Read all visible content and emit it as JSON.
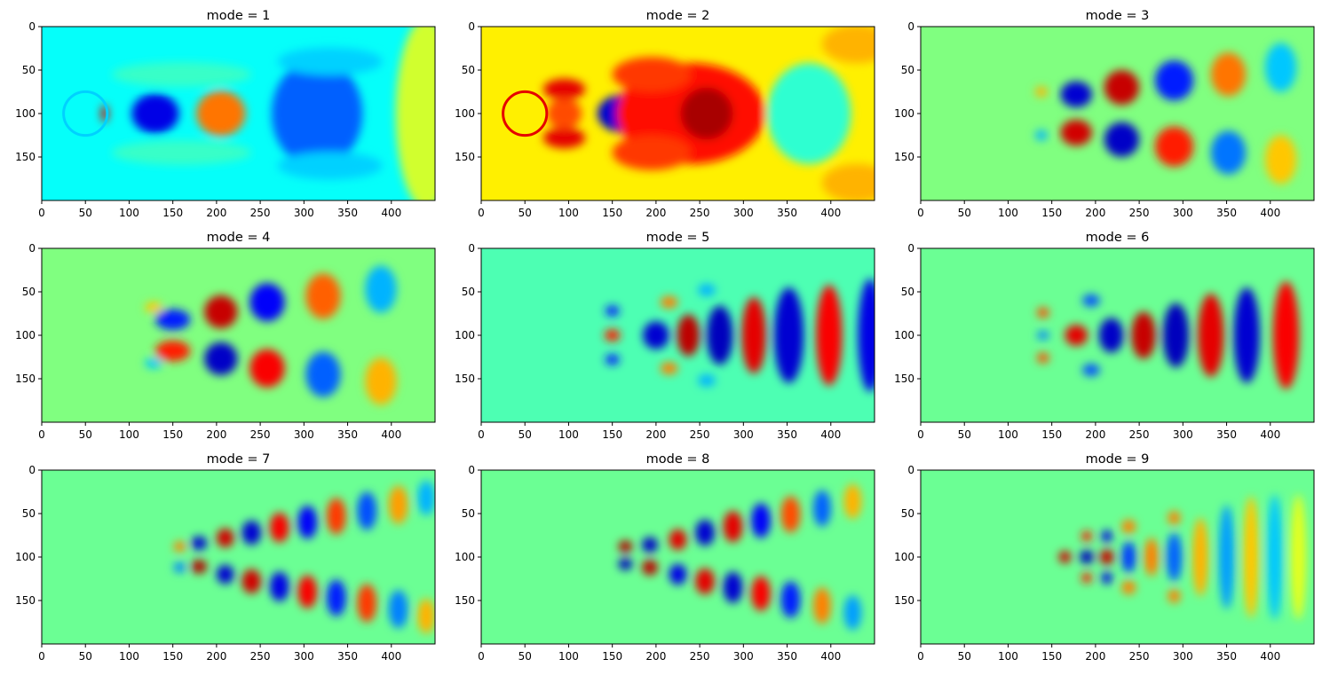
{
  "chart_data": {
    "type": "heatmap",
    "colormap": "jet",
    "xlim": [
      0,
      450
    ],
    "ylim": [
      200,
      0
    ],
    "xticks": [
      "0",
      "50",
      "100",
      "150",
      "200",
      "250",
      "300",
      "350",
      "400"
    ],
    "yticks": [
      "0",
      "50",
      "100",
      "150"
    ],
    "grid": false,
    "cylinder": {
      "center_x": 50,
      "center_y": 100,
      "radius": 25
    },
    "panels": [
      {
        "title": "mode = 1",
        "background": 0.38,
        "shell_value": 0.33,
        "features": [
          {
            "x": 72,
            "y": 100,
            "rx": 4,
            "ry": 10,
            "v": 0.92
          },
          {
            "x": 130,
            "y": 100,
            "rx": 27,
            "ry": 23,
            "v": 0.1
          },
          {
            "x": 205,
            "y": 100,
            "rx": 28,
            "ry": 26,
            "v": 0.76
          },
          {
            "x": 160,
            "y": 55,
            "rx": 80,
            "ry": 14,
            "v": 0.43
          },
          {
            "x": 160,
            "y": 145,
            "rx": 80,
            "ry": 14,
            "v": 0.43
          },
          {
            "x": 315,
            "y": 100,
            "rx": 52,
            "ry": 62,
            "v": 0.22
          },
          {
            "x": 330,
            "y": 40,
            "rx": 60,
            "ry": 16,
            "v": 0.33
          },
          {
            "x": 330,
            "y": 160,
            "rx": 60,
            "ry": 16,
            "v": 0.33
          },
          {
            "x": 440,
            "y": 100,
            "rx": 35,
            "ry": 110,
            "v": 0.58
          }
        ]
      },
      {
        "title": "mode = 2",
        "background": 0.64,
        "shell_value": 0.9,
        "features": [
          {
            "x": 95,
            "y": 72,
            "rx": 24,
            "ry": 12,
            "v": 0.9
          },
          {
            "x": 95,
            "y": 128,
            "rx": 24,
            "ry": 12,
            "v": 0.9
          },
          {
            "x": 95,
            "y": 100,
            "rx": 20,
            "ry": 18,
            "v": 0.8
          },
          {
            "x": 163,
            "y": 100,
            "rx": 30,
            "ry": 22,
            "v": 0.08
          },
          {
            "x": 240,
            "y": 100,
            "rx": 85,
            "ry": 58,
            "v": 0.86
          },
          {
            "x": 258,
            "y": 100,
            "rx": 30,
            "ry": 30,
            "v": 0.96
          },
          {
            "x": 195,
            "y": 55,
            "rx": 45,
            "ry": 20,
            "v": 0.82
          },
          {
            "x": 195,
            "y": 145,
            "rx": 45,
            "ry": 20,
            "v": 0.82
          },
          {
            "x": 375,
            "y": 100,
            "rx": 48,
            "ry": 58,
            "v": 0.42
          },
          {
            "x": 430,
            "y": 20,
            "rx": 40,
            "ry": 22,
            "v": 0.7
          },
          {
            "x": 430,
            "y": 180,
            "rx": 40,
            "ry": 22,
            "v": 0.7
          }
        ]
      },
      {
        "title": "mode = 3",
        "background": 0.5,
        "shell_value": 0.45,
        "features": [
          {
            "x": 138,
            "y": 75,
            "rx": 7,
            "ry": 6,
            "v": 0.7
          },
          {
            "x": 138,
            "y": 125,
            "rx": 7,
            "ry": 6,
            "v": 0.3
          },
          {
            "x": 178,
            "y": 78,
            "rx": 18,
            "ry": 15,
            "v": 0.08
          },
          {
            "x": 178,
            "y": 122,
            "rx": 18,
            "ry": 15,
            "v": 0.92
          },
          {
            "x": 230,
            "y": 70,
            "rx": 20,
            "ry": 20,
            "v": 0.93
          },
          {
            "x": 230,
            "y": 130,
            "rx": 20,
            "ry": 20,
            "v": 0.07
          },
          {
            "x": 290,
            "y": 62,
            "rx": 22,
            "ry": 23,
            "v": 0.15
          },
          {
            "x": 290,
            "y": 138,
            "rx": 22,
            "ry": 23,
            "v": 0.85
          },
          {
            "x": 352,
            "y": 55,
            "rx": 20,
            "ry": 25,
            "v": 0.76
          },
          {
            "x": 352,
            "y": 145,
            "rx": 20,
            "ry": 25,
            "v": 0.24
          },
          {
            "x": 412,
            "y": 47,
            "rx": 18,
            "ry": 28,
            "v": 0.32
          },
          {
            "x": 412,
            "y": 153,
            "rx": 18,
            "ry": 28,
            "v": 0.68
          }
        ]
      },
      {
        "title": "mode = 4",
        "background": 0.5,
        "shell_value": 0.5,
        "features": [
          {
            "x": 128,
            "y": 68,
            "rx": 10,
            "ry": 6,
            "v": 0.68
          },
          {
            "x": 128,
            "y": 132,
            "rx": 10,
            "ry": 6,
            "v": 0.32
          },
          {
            "x": 150,
            "y": 82,
            "rx": 20,
            "ry": 12,
            "v": 0.15
          },
          {
            "x": 150,
            "y": 118,
            "rx": 20,
            "ry": 12,
            "v": 0.85
          },
          {
            "x": 205,
            "y": 73,
            "rx": 19,
            "ry": 19,
            "v": 0.93
          },
          {
            "x": 205,
            "y": 127,
            "rx": 19,
            "ry": 19,
            "v": 0.07
          },
          {
            "x": 258,
            "y": 62,
            "rx": 20,
            "ry": 22,
            "v": 0.12
          },
          {
            "x": 258,
            "y": 138,
            "rx": 20,
            "ry": 22,
            "v": 0.88
          },
          {
            "x": 322,
            "y": 55,
            "rx": 20,
            "ry": 26,
            "v": 0.78
          },
          {
            "x": 322,
            "y": 145,
            "rx": 20,
            "ry": 26,
            "v": 0.22
          },
          {
            "x": 388,
            "y": 47,
            "rx": 18,
            "ry": 27,
            "v": 0.3
          },
          {
            "x": 388,
            "y": 153,
            "rx": 18,
            "ry": 27,
            "v": 0.7
          }
        ]
      },
      {
        "title": "mode = 5",
        "background": 0.45,
        "shell_value": 0.45,
        "features": [
          {
            "x": 150,
            "y": 72,
            "rx": 8,
            "ry": 6,
            "v": 0.15
          },
          {
            "x": 150,
            "y": 100,
            "rx": 9,
            "ry": 7,
            "v": 0.85
          },
          {
            "x": 150,
            "y": 128,
            "rx": 8,
            "ry": 6,
            "v": 0.15
          },
          {
            "x": 200,
            "y": 100,
            "rx": 15,
            "ry": 16,
            "v": 0.08
          },
          {
            "x": 237,
            "y": 100,
            "rx": 13,
            "ry": 24,
            "v": 0.94
          },
          {
            "x": 273,
            "y": 100,
            "rx": 15,
            "ry": 34,
            "v": 0.06
          },
          {
            "x": 312,
            "y": 100,
            "rx": 14,
            "ry": 44,
            "v": 0.9
          },
          {
            "x": 352,
            "y": 100,
            "rx": 17,
            "ry": 55,
            "v": 0.08
          },
          {
            "x": 398,
            "y": 100,
            "rx": 15,
            "ry": 58,
            "v": 0.88
          },
          {
            "x": 445,
            "y": 100,
            "rx": 14,
            "ry": 65,
            "v": 0.1
          },
          {
            "x": 215,
            "y": 62,
            "rx": 10,
            "ry": 7,
            "v": 0.75
          },
          {
            "x": 215,
            "y": 138,
            "rx": 10,
            "ry": 7,
            "v": 0.75
          },
          {
            "x": 258,
            "y": 48,
            "rx": 10,
            "ry": 7,
            "v": 0.3
          },
          {
            "x": 258,
            "y": 152,
            "rx": 10,
            "ry": 7,
            "v": 0.3
          }
        ]
      },
      {
        "title": "mode = 6",
        "background": 0.48,
        "shell_value": 0.48,
        "features": [
          {
            "x": 140,
            "y": 74,
            "rx": 7,
            "ry": 6,
            "v": 0.8
          },
          {
            "x": 140,
            "y": 126,
            "rx": 7,
            "ry": 6,
            "v": 0.8
          },
          {
            "x": 140,
            "y": 100,
            "rx": 7,
            "ry": 5,
            "v": 0.25
          },
          {
            "x": 178,
            "y": 100,
            "rx": 13,
            "ry": 12,
            "v": 0.9
          },
          {
            "x": 218,
            "y": 100,
            "rx": 14,
            "ry": 20,
            "v": 0.07
          },
          {
            "x": 255,
            "y": 100,
            "rx": 14,
            "ry": 27,
            "v": 0.93
          },
          {
            "x": 292,
            "y": 100,
            "rx": 15,
            "ry": 37,
            "v": 0.06
          },
          {
            "x": 332,
            "y": 100,
            "rx": 15,
            "ry": 48,
            "v": 0.9
          },
          {
            "x": 373,
            "y": 100,
            "rx": 15,
            "ry": 55,
            "v": 0.08
          },
          {
            "x": 418,
            "y": 100,
            "rx": 15,
            "ry": 62,
            "v": 0.88
          },
          {
            "x": 195,
            "y": 60,
            "rx": 10,
            "ry": 7,
            "v": 0.2
          },
          {
            "x": 195,
            "y": 140,
            "rx": 10,
            "ry": 7,
            "v": 0.2
          }
        ]
      },
      {
        "title": "mode = 7",
        "background": 0.48,
        "shell_value": 0.48,
        "features": [
          {
            "x": 158,
            "y": 88,
            "rx": 7,
            "ry": 6,
            "v": 0.75
          },
          {
            "x": 158,
            "y": 112,
            "rx": 7,
            "ry": 6,
            "v": 0.25
          },
          {
            "x": 180,
            "y": 84,
            "rx": 9,
            "ry": 8,
            "v": 0.08
          },
          {
            "x": 180,
            "y": 111,
            "rx": 9,
            "ry": 8,
            "v": 0.95
          },
          {
            "x": 210,
            "y": 78,
            "rx": 10,
            "ry": 11,
            "v": 0.92
          },
          {
            "x": 210,
            "y": 120,
            "rx": 10,
            "ry": 11,
            "v": 0.08
          },
          {
            "x": 240,
            "y": 72,
            "rx": 11,
            "ry": 14,
            "v": 0.08
          },
          {
            "x": 240,
            "y": 128,
            "rx": 11,
            "ry": 14,
            "v": 0.92
          },
          {
            "x": 272,
            "y": 66,
            "rx": 11,
            "ry": 17,
            "v": 0.88
          },
          {
            "x": 272,
            "y": 134,
            "rx": 11,
            "ry": 17,
            "v": 0.1
          },
          {
            "x": 304,
            "y": 60,
            "rx": 11,
            "ry": 19,
            "v": 0.12
          },
          {
            "x": 304,
            "y": 140,
            "rx": 11,
            "ry": 19,
            "v": 0.88
          },
          {
            "x": 337,
            "y": 53,
            "rx": 11,
            "ry": 21,
            "v": 0.82
          },
          {
            "x": 337,
            "y": 147,
            "rx": 11,
            "ry": 21,
            "v": 0.15
          },
          {
            "x": 372,
            "y": 47,
            "rx": 11,
            "ry": 22,
            "v": 0.2
          },
          {
            "x": 372,
            "y": 153,
            "rx": 11,
            "ry": 22,
            "v": 0.82
          },
          {
            "x": 408,
            "y": 40,
            "rx": 11,
            "ry": 22,
            "v": 0.72
          },
          {
            "x": 408,
            "y": 160,
            "rx": 11,
            "ry": 22,
            "v": 0.25
          },
          {
            "x": 440,
            "y": 32,
            "rx": 10,
            "ry": 20,
            "v": 0.3
          },
          {
            "x": 440,
            "y": 168,
            "rx": 10,
            "ry": 20,
            "v": 0.7
          }
        ]
      },
      {
        "title": "mode = 8",
        "background": 0.48,
        "shell_value": 0.48,
        "features": [
          {
            "x": 165,
            "y": 88,
            "rx": 8,
            "ry": 7,
            "v": 0.95
          },
          {
            "x": 165,
            "y": 108,
            "rx": 8,
            "ry": 7,
            "v": 0.06
          },
          {
            "x": 193,
            "y": 86,
            "rx": 9,
            "ry": 9,
            "v": 0.07
          },
          {
            "x": 193,
            "y": 112,
            "rx": 9,
            "ry": 9,
            "v": 0.94
          },
          {
            "x": 225,
            "y": 80,
            "rx": 10,
            "ry": 12,
            "v": 0.9
          },
          {
            "x": 225,
            "y": 120,
            "rx": 10,
            "ry": 12,
            "v": 0.1
          },
          {
            "x": 256,
            "y": 72,
            "rx": 11,
            "ry": 15,
            "v": 0.08
          },
          {
            "x": 256,
            "y": 128,
            "rx": 11,
            "ry": 15,
            "v": 0.9
          },
          {
            "x": 288,
            "y": 65,
            "rx": 11,
            "ry": 18,
            "v": 0.9
          },
          {
            "x": 288,
            "y": 135,
            "rx": 11,
            "ry": 18,
            "v": 0.08
          },
          {
            "x": 320,
            "y": 58,
            "rx": 11,
            "ry": 20,
            "v": 0.12
          },
          {
            "x": 320,
            "y": 142,
            "rx": 11,
            "ry": 20,
            "v": 0.88
          },
          {
            "x": 354,
            "y": 51,
            "rx": 11,
            "ry": 21,
            "v": 0.8
          },
          {
            "x": 354,
            "y": 149,
            "rx": 11,
            "ry": 21,
            "v": 0.15
          },
          {
            "x": 390,
            "y": 44,
            "rx": 10,
            "ry": 21,
            "v": 0.22
          },
          {
            "x": 390,
            "y": 156,
            "rx": 10,
            "ry": 21,
            "v": 0.75
          },
          {
            "x": 425,
            "y": 36,
            "rx": 10,
            "ry": 20,
            "v": 0.7
          },
          {
            "x": 425,
            "y": 164,
            "rx": 10,
            "ry": 20,
            "v": 0.28
          }
        ]
      },
      {
        "title": "mode = 9",
        "background": 0.48,
        "shell_value": 0.48,
        "features": [
          {
            "x": 165,
            "y": 100,
            "rx": 7,
            "ry": 7,
            "v": 0.92
          },
          {
            "x": 190,
            "y": 76,
            "rx": 6,
            "ry": 6,
            "v": 0.85
          },
          {
            "x": 190,
            "y": 100,
            "rx": 8,
            "ry": 8,
            "v": 0.06
          },
          {
            "x": 190,
            "y": 124,
            "rx": 6,
            "ry": 6,
            "v": 0.85
          },
          {
            "x": 213,
            "y": 76,
            "rx": 6,
            "ry": 7,
            "v": 0.1
          },
          {
            "x": 213,
            "y": 100,
            "rx": 8,
            "ry": 9,
            "v": 0.93
          },
          {
            "x": 213,
            "y": 124,
            "rx": 6,
            "ry": 7,
            "v": 0.1
          },
          {
            "x": 238,
            "y": 100,
            "rx": 8,
            "ry": 18,
            "v": 0.18
          },
          {
            "x": 238,
            "y": 65,
            "rx": 8,
            "ry": 8,
            "v": 0.75
          },
          {
            "x": 238,
            "y": 135,
            "rx": 8,
            "ry": 8,
            "v": 0.75
          },
          {
            "x": 264,
            "y": 100,
            "rx": 8,
            "ry": 22,
            "v": 0.75
          },
          {
            "x": 290,
            "y": 100,
            "rx": 9,
            "ry": 28,
            "v": 0.22
          },
          {
            "x": 290,
            "y": 55,
            "rx": 7,
            "ry": 8,
            "v": 0.75
          },
          {
            "x": 290,
            "y": 145,
            "rx": 7,
            "ry": 8,
            "v": 0.75
          },
          {
            "x": 320,
            "y": 100,
            "rx": 9,
            "ry": 45,
            "v": 0.7
          },
          {
            "x": 350,
            "y": 100,
            "rx": 9,
            "ry": 60,
            "v": 0.28
          },
          {
            "x": 378,
            "y": 100,
            "rx": 9,
            "ry": 70,
            "v": 0.68
          },
          {
            "x": 405,
            "y": 100,
            "rx": 9,
            "ry": 72,
            "v": 0.32
          },
          {
            "x": 432,
            "y": 100,
            "rx": 9,
            "ry": 72,
            "v": 0.6
          }
        ]
      }
    ]
  }
}
